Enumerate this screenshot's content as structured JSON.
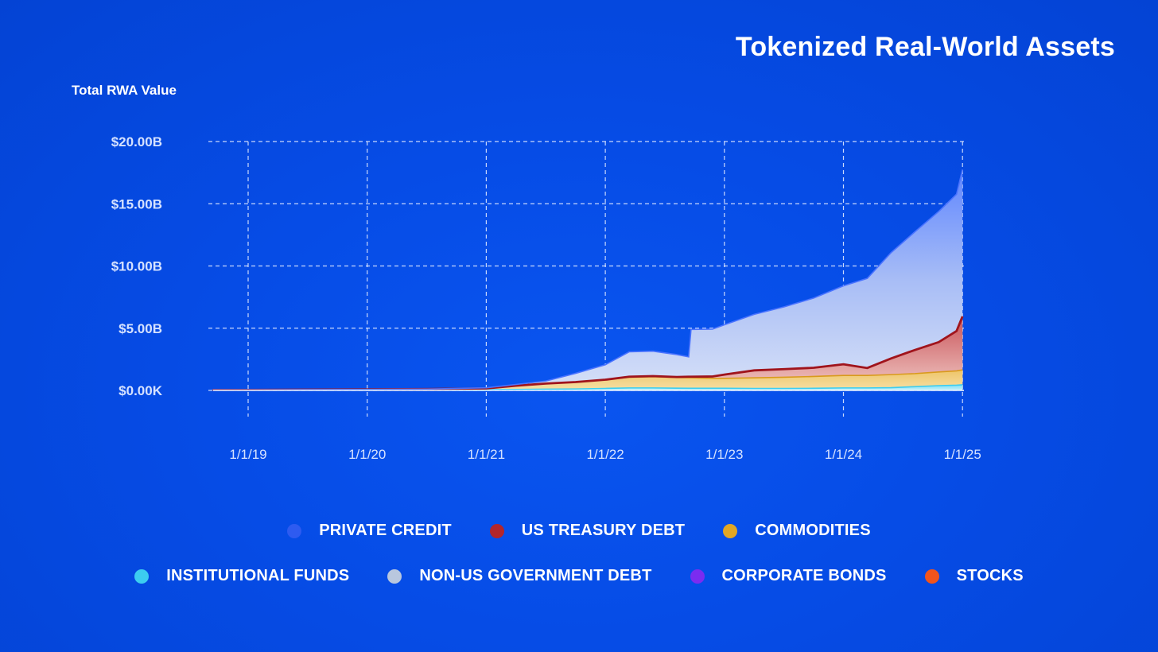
{
  "title": "Tokenized Real-World Assets",
  "y_axis_title": "Total RWA Value",
  "colors": {
    "private_credit": "#2e5bf0",
    "us_treasury_debt": "#b3262b",
    "commodities": "#e2a724",
    "institutional_funds": "#3ccdf0",
    "non_us_government_debt": "#b9c7de",
    "corporate_bonds": "#7b2cf0",
    "stocks": "#f2541b"
  },
  "legend": {
    "row1": [
      {
        "label": "PRIVATE CREDIT",
        "color": "#2e5bf0"
      },
      {
        "label": "US TREASURY DEBT",
        "color": "#b3262b"
      },
      {
        "label": "COMMODITIES",
        "color": "#e2a724"
      }
    ],
    "row2": [
      {
        "label": "INSTITUTIONAL FUNDS",
        "color": "#3ccdf0"
      },
      {
        "label": "NON-US GOVERNMENT DEBT",
        "color": "#b9c7de"
      },
      {
        "label": "CORPORATE BONDS",
        "color": "#7b2cf0"
      },
      {
        "label": "STOCKS",
        "color": "#f2541b"
      }
    ]
  },
  "chart_data": {
    "type": "area",
    "stacked": true,
    "title": "Tokenized Real-World Assets",
    "ylabel": "Total RWA Value",
    "xlabel": "",
    "x_ticks": [
      "1/1/19",
      "1/1/20",
      "1/1/21",
      "1/1/22",
      "1/1/23",
      "1/1/24",
      "1/1/25"
    ],
    "y_ticks": [
      "$0.00K",
      "$5.00B",
      "$10.00B",
      "$15.00B",
      "$20.00B"
    ],
    "ylim": [
      0,
      20
    ],
    "y_unit": "billions USD",
    "grid": true,
    "legend_position": "bottom",
    "x": [
      2018.7,
      2019.0,
      2019.5,
      2020.0,
      2020.5,
      2021.0,
      2021.25,
      2021.5,
      2021.75,
      2022.0,
      2022.2,
      2022.4,
      2022.6,
      2022.7,
      2022.72,
      2022.9,
      2023.0,
      2023.25,
      2023.5,
      2023.75,
      2024.0,
      2024.2,
      2024.4,
      2024.6,
      2024.8,
      2024.95,
      2025.0
    ],
    "series": [
      {
        "name": "INSTITUTIONAL FUNDS",
        "values": [
          0.02,
          0.02,
          0.03,
          0.04,
          0.05,
          0.06,
          0.08,
          0.1,
          0.12,
          0.16,
          0.2,
          0.2,
          0.18,
          0.17,
          0.17,
          0.17,
          0.17,
          0.16,
          0.16,
          0.17,
          0.2,
          0.2,
          0.22,
          0.3,
          0.38,
          0.42,
          0.45
        ]
      },
      {
        "name": "COMMODITIES",
        "values": [
          0.02,
          0.02,
          0.03,
          0.04,
          0.06,
          0.1,
          0.3,
          0.45,
          0.55,
          0.7,
          0.85,
          0.9,
          0.85,
          0.85,
          0.85,
          0.8,
          0.8,
          0.85,
          0.9,
          0.95,
          1.0,
          1.0,
          1.05,
          1.05,
          1.1,
          1.15,
          1.2
        ]
      },
      {
        "name": "US TREASURY DEBT",
        "values": [
          0.0,
          0.0,
          0.0,
          0.0,
          0.0,
          0.0,
          0.0,
          0.0,
          0.0,
          0.0,
          0.05,
          0.05,
          0.05,
          0.08,
          0.08,
          0.15,
          0.3,
          0.6,
          0.65,
          0.7,
          0.9,
          0.6,
          1.3,
          1.9,
          2.4,
          3.2,
          4.3
        ]
      },
      {
        "name": "PRIVATE CREDIT",
        "values": [
          0.0,
          0.0,
          0.0,
          0.0,
          0.0,
          0.05,
          0.1,
          0.2,
          0.7,
          1.2,
          2.0,
          2.0,
          1.8,
          1.6,
          3.8,
          3.8,
          4.0,
          4.5,
          5.0,
          5.6,
          6.3,
          7.2,
          8.5,
          9.5,
          10.5,
          11.0,
          11.8
        ]
      }
    ]
  }
}
